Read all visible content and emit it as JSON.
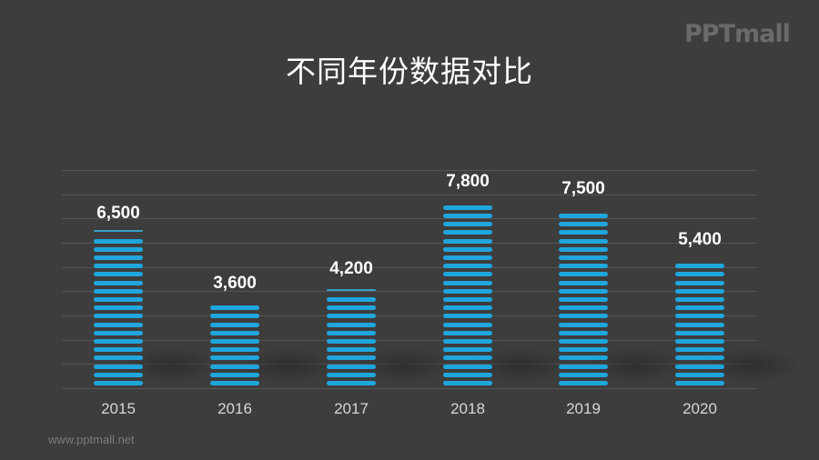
{
  "header": {
    "title": "不同年份数据对比",
    "logo": "PPTmall"
  },
  "footer": {
    "url": "www.pptmall.net"
  },
  "colors": {
    "background": "#3d3d3d",
    "bar": "#1fa6dc",
    "grid": "#545454",
    "text": "#ffffff",
    "axis_label": "#d6d6d6"
  },
  "chart_data": {
    "type": "bar",
    "title": "不同年份数据对比",
    "xlabel": "",
    "ylabel": "",
    "categories": [
      "2015",
      "2016",
      "2017",
      "2018",
      "2019",
      "2020"
    ],
    "values": [
      6500,
      3600,
      4200,
      7800,
      7500,
      5400
    ],
    "data_labels": [
      "6,500",
      "3,600",
      "4,200",
      "7,800",
      "7,500",
      "5,400"
    ],
    "ylim": [
      0,
      9000
    ],
    "grid": true,
    "grid_step": 1000,
    "y_axis_visible": false,
    "legend": null,
    "style": "striped bars"
  }
}
